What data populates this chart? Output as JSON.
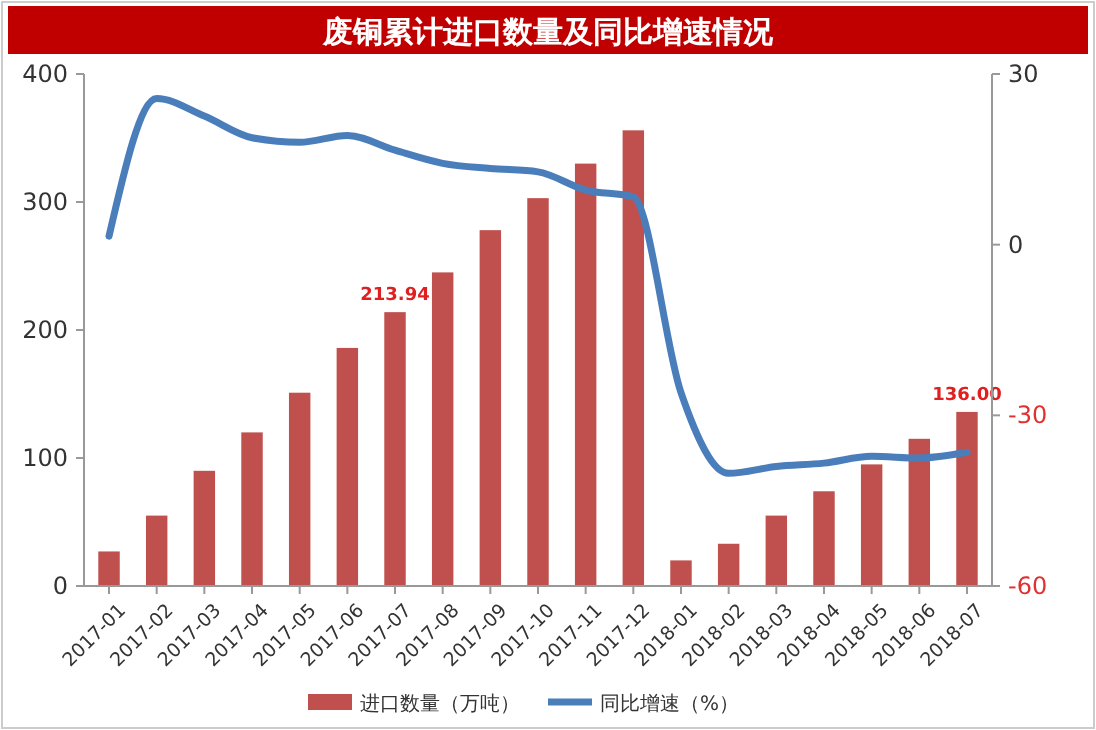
{
  "chart_data": {
    "type": "bar",
    "title": "废铜累计进口数量及同比增速情况",
    "categories": [
      "2017-01",
      "2017-02",
      "2017-03",
      "2017-04",
      "2017-05",
      "2017-06",
      "2017-07",
      "2017-08",
      "2017-09",
      "2017-10",
      "2017-11",
      "2017-12",
      "2018-01",
      "2018-02",
      "2018-03",
      "2018-04",
      "2018-05",
      "2018-06",
      "2018-07"
    ],
    "series": [
      {
        "name": "进口数量（万吨）",
        "color": "#c0504d",
        "values": [
          27,
          55,
          90,
          120,
          151,
          186,
          213.94,
          245,
          278,
          303,
          330,
          356,
          20,
          33,
          55,
          74,
          95,
          115,
          136
        ],
        "value_labels": [
          null,
          null,
          null,
          null,
          null,
          null,
          "213.94",
          null,
          null,
          null,
          null,
          null,
          null,
          null,
          null,
          null,
          null,
          null,
          "136.00"
        ]
      },
      {
        "name": "同比增速（%）",
        "type": "line",
        "axis": "y2",
        "color": "#4a7ebb",
        "values": [
          1.5,
          25.7,
          22.6,
          18.8,
          18,
          19.2,
          16.6,
          14.3,
          13.4,
          12.8,
          9.6,
          8.4,
          -26,
          -40.2,
          -39,
          -38.4,
          -37.2,
          -37.5,
          -36.5
        ]
      }
    ],
    "ylim": [
      0,
      400
    ],
    "yticks": [
      0,
      100,
      200,
      300,
      400
    ],
    "y2lim": [
      -60,
      30
    ],
    "y2ticks": [
      -60,
      -30,
      0,
      30
    ],
    "grid": false,
    "legend": "bottom"
  }
}
